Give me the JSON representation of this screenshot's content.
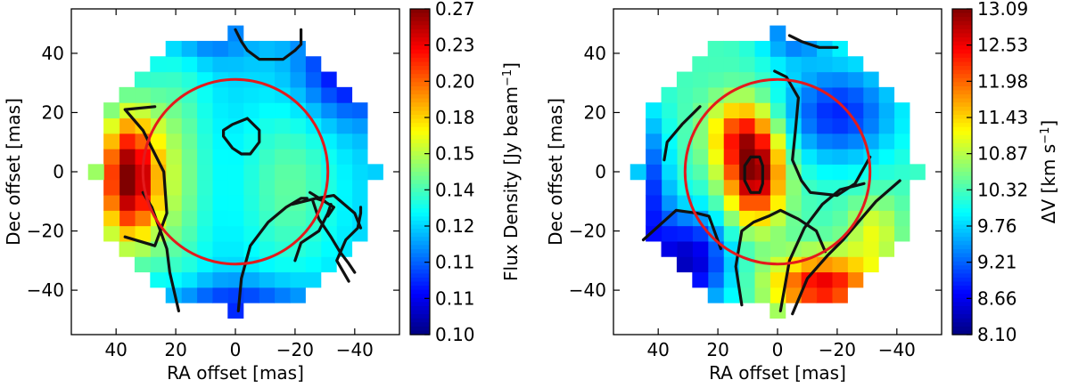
{
  "chart_data": [
    {
      "type": "heatmap",
      "title": "",
      "xlabel": "RA offset [mas]",
      "ylabel": "Dec offset [mas]",
      "xlim": [
        55,
        -55
      ],
      "ylim": [
        -55,
        55
      ],
      "xticks": [
        40,
        20,
        0,
        -20,
        -40
      ],
      "xtick_labels": [
        "40",
        "20",
        "0",
        "−20",
        "−40"
      ],
      "yticks": [
        40,
        20,
        0,
        -20,
        -40
      ],
      "ytick_labels": [
        "40",
        "20",
        "0",
        "−20",
        "−40"
      ],
      "colorbar_label": "Flux Density [Jy beam",
      "colorbar_label_sup": "−1",
      "colorbar_label_end": "]",
      "colorbar_ticks": [
        "0.27",
        "0.23",
        "0.20",
        "0.18",
        "0.15",
        "0.14",
        "0.12",
        "0.11",
        "0.11",
        "0.10"
      ],
      "vmin": 0.1,
      "vmax": 0.27,
      "pixel_size_mas": 5.2,
      "disk_radius_mas": 47,
      "grid_on": false,
      "field_model": "left limb brightened (max ~0.27 near RA +35, Dec 0); smooth ~0.15–0.18 center; fainter (~0.11–0.13) toward upper-right and bottom rim",
      "circle": {
        "center": [
          0,
          0
        ],
        "radius_mas": 31,
        "color": "#e31a1c"
      },
      "contours": [
        [
          [
            27,
            22
          ],
          [
            37,
            21
          ],
          [
            31,
            14
          ],
          [
            24,
            0
          ],
          [
            23,
            -14
          ],
          [
            27,
            -25
          ],
          [
            37,
            -22
          ]
        ],
        [
          [
            -4,
            18
          ],
          [
            1,
            16
          ],
          [
            4,
            14
          ],
          [
            4,
            12
          ],
          [
            1,
            8
          ],
          [
            -2,
            6
          ],
          [
            -5,
            6
          ],
          [
            -8,
            10
          ],
          [
            -8,
            14
          ],
          [
            -5,
            17
          ],
          [
            -4,
            18
          ]
        ],
        [
          [
            -20,
            -30
          ],
          [
            -22,
            -24
          ],
          [
            -28,
            -20
          ],
          [
            -31,
            -14
          ],
          [
            -32,
            -11
          ]
        ],
        [
          [
            -26,
            -10
          ],
          [
            -28,
            -16
          ],
          [
            -32,
            -22
          ],
          [
            -35,
            -27
          ],
          [
            -38,
            -31
          ],
          [
            -40,
            -34
          ]
        ],
        [
          [
            19,
            -47
          ],
          [
            22,
            -34
          ],
          [
            23,
            -26
          ],
          [
            28,
            -12
          ],
          [
            31,
            -7
          ]
        ],
        [
          [
            -1,
            -47
          ],
          [
            -2,
            -36
          ],
          [
            -5,
            -25
          ],
          [
            -11,
            -17
          ],
          [
            -17,
            -12
          ],
          [
            -22,
            -9
          ],
          [
            -24,
            -9
          ]
        ],
        [
          [
            -27,
            -9
          ],
          [
            -30,
            -10
          ]
        ],
        [
          [
            -25,
            -7
          ],
          [
            -33,
            -12
          ],
          [
            -31,
            -15
          ]
        ],
        [
          [
            -38,
            -37
          ],
          [
            -34,
            -30
          ],
          [
            -37,
            -23
          ],
          [
            -41,
            -19
          ],
          [
            -42,
            -14
          ],
          [
            -42,
            -12
          ]
        ],
        [
          [
            -19,
            -11
          ],
          [
            -27,
            -9
          ],
          [
            -33,
            -8
          ],
          [
            -40,
            -14
          ],
          [
            -42,
            -19
          ]
        ],
        [
          [
            -4,
            41
          ],
          [
            -8,
            38
          ],
          [
            -12,
            38
          ],
          [
            -16,
            38
          ],
          [
            -20,
            41
          ]
        ],
        [
          [
            -4,
            41
          ],
          [
            -2,
            44
          ],
          [
            0,
            48
          ]
        ],
        [
          [
            -20,
            41
          ],
          [
            -22,
            43
          ],
          [
            -22,
            48
          ]
        ]
      ]
    },
    {
      "type": "heatmap",
      "title": "",
      "xlabel": "RA offset [mas]",
      "ylabel": "Dec offset [mas]",
      "xlim": [
        55,
        -55
      ],
      "ylim": [
        -55,
        55
      ],
      "xticks": [
        40,
        20,
        0,
        -20,
        -40
      ],
      "xtick_labels": [
        "40",
        "20",
        "0",
        "−20",
        "−40"
      ],
      "yticks": [
        40,
        20,
        0,
        -20,
        -40
      ],
      "ytick_labels": [
        "40",
        "20",
        "0",
        "−20",
        "−40"
      ],
      "colorbar_label": "ΔV [km s",
      "colorbar_label_sup": "−1",
      "colorbar_label_end": "]",
      "colorbar_ticks": [
        "13.09",
        "12.53",
        "11.98",
        "11.43",
        "10.87",
        "10.32",
        "9.76",
        "9.21",
        "8.66",
        "8.10"
      ],
      "vmin": 8.1,
      "vmax": 13.09,
      "pixel_size_mas": 5.2,
      "disk_radius_mas": 47,
      "grid_on": false,
      "field_model": "red core (~12.8–13.1) at RA +8, Dec 0; red patch (~12.5) bottom-right at RA -15, Dec -38; blue (~9.0) upper-right; dark blue (~8.1–8.6) lower-left rim; green ~10.3 elsewhere",
      "circle": {
        "center": [
          0,
          0
        ],
        "radius_mas": 31,
        "color": "#e31a1c"
      },
      "contours": [
        [
          [
            11,
            -3
          ],
          [
            11,
            2
          ],
          [
            9,
            5
          ],
          [
            6,
            5
          ],
          [
            5,
            2
          ],
          [
            5,
            -4
          ],
          [
            6,
            -7
          ],
          [
            9,
            -7
          ],
          [
            11,
            -3
          ]
        ],
        [
          [
            -4,
            46
          ],
          [
            -8,
            44
          ],
          [
            -14,
            42
          ],
          [
            -20,
            42
          ]
        ],
        [
          [
            1,
            34
          ],
          [
            -3,
            32
          ],
          [
            -7,
            25
          ],
          [
            -6,
            14
          ],
          [
            -5,
            4
          ],
          [
            -8,
            -3
          ],
          [
            -11,
            -7
          ],
          [
            -20,
            -8
          ],
          [
            -26,
            -4
          ],
          [
            -31,
            5
          ]
        ],
        [
          [
            38,
            4
          ],
          [
            37,
            10
          ],
          [
            32,
            16
          ],
          [
            26,
            22
          ]
        ],
        [
          [
            -1,
            -47
          ],
          [
            -4,
            -30
          ],
          [
            -9,
            -19
          ],
          [
            -15,
            -11
          ],
          [
            -21,
            -6
          ],
          [
            -29,
            -4
          ]
        ],
        [
          [
            -5,
            -48
          ],
          [
            -10,
            -36
          ],
          [
            -17,
            -28
          ],
          [
            -22,
            -23
          ],
          [
            -33,
            -10
          ],
          [
            -41,
            -3
          ]
        ],
        [
          [
            12,
            -45
          ],
          [
            14,
            -32
          ],
          [
            12,
            -20
          ],
          [
            8,
            -17
          ],
          [
            3,
            -15
          ],
          [
            -1,
            -13
          ],
          [
            -7,
            -16
          ],
          [
            -13,
            -20
          ],
          [
            -16,
            -27
          ]
        ],
        [
          [
            45,
            -23
          ],
          [
            34,
            -13
          ],
          [
            27,
            -14
          ],
          [
            23,
            -15
          ],
          [
            19,
            -26
          ]
        ]
      ]
    }
  ]
}
